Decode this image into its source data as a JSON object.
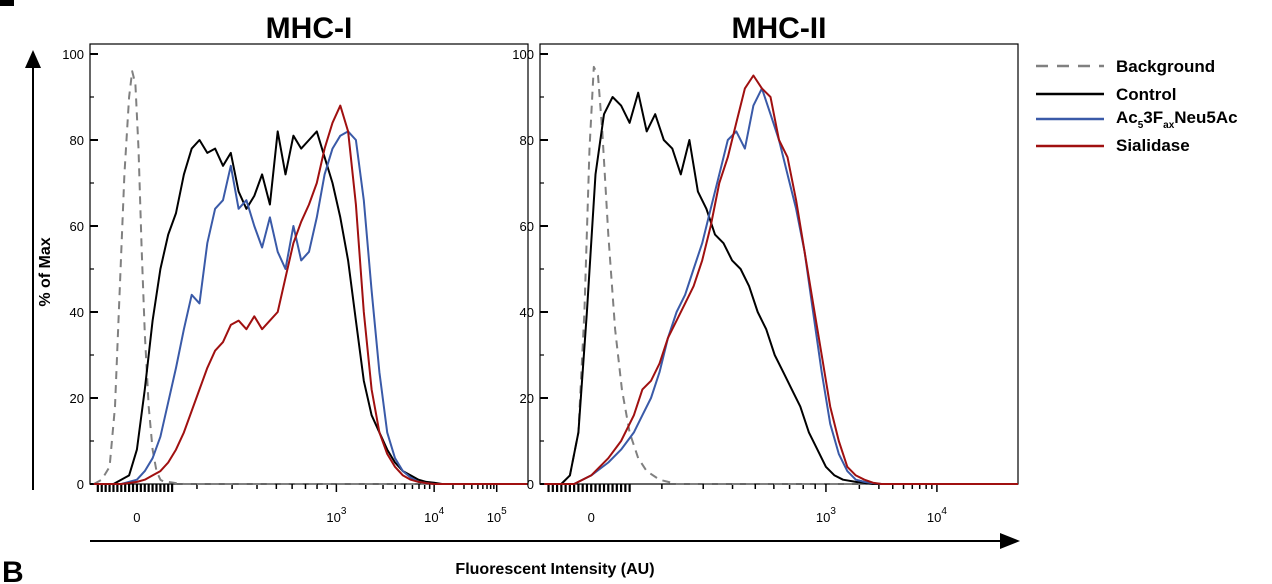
{
  "colors": {
    "background": "#808080",
    "control": "#000000",
    "ac5": "#3a5aa8",
    "sialidase": "#a01010"
  },
  "labels": {
    "y_axis": "% of Max",
    "x_axis": "Fluorescent Intensity (AU)",
    "panel_letter": "B"
  },
  "legend": {
    "background": "Background",
    "control": "Control",
    "ac5_part1": "Ac",
    "ac5_sub1": "5",
    "ac5_part2": "3F",
    "ac5_sub2": "ax",
    "ac5_part3": "Neu5Ac",
    "sialidase": "Sialidase"
  },
  "chart_data": [
    {
      "type": "line",
      "title": "MHC-I",
      "ylim": [
        0,
        100
      ],
      "yticks": [
        "0",
        "20",
        "40",
        "60",
        "80",
        "100"
      ],
      "xticks": [
        {
          "base": "0",
          "exp": ""
        },
        {
          "base": "10",
          "exp": "3"
        },
        {
          "base": "10",
          "exp": "4"
        },
        {
          "base": "10",
          "exp": "5"
        }
      ],
      "xlabel": "Fluorescent Intensity (AU)",
      "ylabel": "% of Max",
      "series": [
        {
          "name": "Background",
          "key": "background",
          "dashed": true,
          "x": [
            -0.55,
            -0.45,
            -0.35,
            -0.28,
            -0.22,
            -0.16,
            -0.1,
            -0.06,
            -0.02,
            0.02,
            0.06,
            0.1,
            0.15,
            0.2,
            0.25,
            0.3,
            0.35,
            0.4,
            0.5,
            0.6,
            0.8,
            1.0,
            1.4,
            2.0,
            2.6,
            3.0,
            3.4,
            3.8,
            4.2,
            4.6,
            5.0
          ],
          "y": [
            0,
            1,
            4,
            18,
            45,
            72,
            90,
            96,
            93,
            78,
            55,
            35,
            18,
            8,
            3,
            1,
            0.5,
            0.5,
            0.2,
            0,
            0,
            0,
            0,
            0,
            0,
            0,
            0,
            0,
            0,
            0,
            0
          ]
        },
        {
          "name": "Control",
          "key": "control",
          "x": [
            -0.55,
            -0.3,
            -0.1,
            0.0,
            0.1,
            0.2,
            0.3,
            0.4,
            0.5,
            0.6,
            0.7,
            0.8,
            0.9,
            1.0,
            1.1,
            1.2,
            1.3,
            1.4,
            1.5,
            1.6,
            1.7,
            1.8,
            1.9,
            2.0,
            2.1,
            2.2,
            2.3,
            2.4,
            2.5,
            2.6,
            2.7,
            2.8,
            2.9,
            3.0,
            3.1,
            3.2,
            3.3,
            3.4,
            3.5,
            3.6,
            3.7,
            3.8,
            3.9,
            4.0,
            4.2,
            4.6,
            5.0
          ],
          "y": [
            0,
            0,
            2,
            8,
            22,
            38,
            50,
            58,
            63,
            72,
            78,
            80,
            77,
            78,
            74,
            77,
            68,
            64,
            67,
            72,
            65,
            82,
            72,
            81,
            78,
            80,
            82,
            76,
            70,
            62,
            52,
            38,
            24,
            16,
            12,
            8,
            5,
            3,
            2,
            1,
            0.5,
            0.3,
            0,
            0,
            0,
            0,
            0
          ]
        },
        {
          "name": "Ac53FaxNeu5Ac",
          "key": "ac5",
          "x": [
            -0.55,
            -0.2,
            0.0,
            0.1,
            0.2,
            0.3,
            0.4,
            0.5,
            0.6,
            0.7,
            0.8,
            0.9,
            1.0,
            1.1,
            1.2,
            1.3,
            1.4,
            1.5,
            1.6,
            1.7,
            1.8,
            1.9,
            2.0,
            2.1,
            2.2,
            2.3,
            2.4,
            2.5,
            2.6,
            2.7,
            2.8,
            2.9,
            3.0,
            3.1,
            3.2,
            3.3,
            3.4,
            3.5,
            3.6,
            3.7,
            3.8,
            3.9,
            4.0,
            4.2,
            4.6,
            5.0
          ],
          "y": [
            0,
            0,
            1,
            3,
            6,
            11,
            19,
            27,
            36,
            44,
            42,
            56,
            64,
            66,
            74,
            64,
            66,
            60,
            55,
            62,
            54,
            50,
            60,
            52,
            54,
            62,
            72,
            78,
            81,
            82,
            80,
            66,
            45,
            26,
            12,
            6,
            3,
            1.5,
            0.5,
            0.2,
            0,
            0,
            0,
            0,
            0,
            0
          ]
        },
        {
          "name": "Sialidase",
          "key": "sialidase",
          "x": [
            -0.55,
            -0.2,
            0.0,
            0.1,
            0.2,
            0.3,
            0.4,
            0.5,
            0.6,
            0.7,
            0.8,
            0.9,
            1.0,
            1.1,
            1.2,
            1.3,
            1.4,
            1.5,
            1.6,
            1.7,
            1.8,
            1.9,
            2.0,
            2.1,
            2.2,
            2.3,
            2.4,
            2.5,
            2.6,
            2.7,
            2.8,
            2.9,
            3.0,
            3.1,
            3.2,
            3.3,
            3.4,
            3.5,
            3.6,
            3.7,
            3.8,
            3.9,
            4.0,
            4.2,
            4.6,
            5.0
          ],
          "y": [
            0,
            0,
            0.5,
            1,
            2,
            3,
            5,
            8,
            12,
            17,
            22,
            27,
            31,
            33,
            37,
            38,
            36,
            39,
            36,
            38,
            40,
            48,
            56,
            61,
            65,
            70,
            78,
            84,
            88,
            82,
            65,
            40,
            22,
            12,
            7,
            4,
            2,
            1,
            0.5,
            0.2,
            0,
            0,
            0,
            0,
            0,
            0
          ]
        }
      ]
    },
    {
      "type": "line",
      "title": "MHC-II",
      "ylim": [
        0,
        100
      ],
      "yticks": [
        "0",
        "20",
        "40",
        "60",
        "80",
        "100"
      ],
      "xticks": [
        {
          "base": "0",
          "exp": ""
        },
        {
          "base": "10",
          "exp": "3"
        },
        {
          "base": "10",
          "exp": "4"
        }
      ],
      "xlabel": "Fluorescent Intensity (AU)",
      "ylabel": "% of Max",
      "series": [
        {
          "name": "Background",
          "key": "background",
          "dashed": true,
          "x": [
            -0.55,
            -0.35,
            -0.25,
            -0.15,
            -0.08,
            -0.02,
            0.03,
            0.08,
            0.13,
            0.2,
            0.28,
            0.36,
            0.45,
            0.55,
            0.65,
            0.8,
            1.0,
            1.4,
            2.0,
            2.6,
            3.0,
            3.4,
            3.8,
            4.2,
            4.6,
            5.0
          ],
          "y": [
            0,
            0,
            2,
            12,
            40,
            78,
            97,
            95,
            82,
            58,
            36,
            22,
            12,
            6,
            3,
            1,
            0,
            0,
            0,
            0,
            0,
            0,
            0,
            0,
            0,
            0
          ]
        },
        {
          "name": "Control",
          "key": "control",
          "x": [
            -0.55,
            -0.35,
            -0.25,
            -0.15,
            -0.05,
            0.05,
            0.15,
            0.25,
            0.35,
            0.45,
            0.55,
            0.65,
            0.75,
            0.85,
            0.95,
            1.05,
            1.15,
            1.25,
            1.35,
            1.45,
            1.55,
            1.65,
            1.75,
            1.85,
            1.95,
            2.05,
            2.15,
            2.25,
            2.35,
            2.45,
            2.55,
            2.65,
            2.75,
            2.85,
            2.95,
            3.1,
            3.3,
            3.5,
            3.8,
            4.2,
            4.6,
            5.0
          ],
          "y": [
            0,
            0,
            2,
            12,
            40,
            72,
            86,
            90,
            88,
            84,
            91,
            82,
            86,
            80,
            78,
            72,
            80,
            68,
            64,
            58,
            56,
            52,
            50,
            46,
            40,
            36,
            30,
            26,
            22,
            18,
            12,
            8,
            4,
            2,
            1,
            0.5,
            0,
            0,
            0,
            0,
            0,
            0
          ]
        },
        {
          "name": "Ac53FaxNeu5Ac",
          "key": "ac5",
          "x": [
            -0.55,
            -0.2,
            0.0,
            0.2,
            0.35,
            0.5,
            0.6,
            0.7,
            0.8,
            0.9,
            1.0,
            1.1,
            1.2,
            1.3,
            1.4,
            1.5,
            1.6,
            1.7,
            1.8,
            1.9,
            2.0,
            2.1,
            2.2,
            2.3,
            2.4,
            2.5,
            2.6,
            2.7,
            2.8,
            2.9,
            3.0,
            3.1,
            3.2,
            3.3,
            3.4,
            3.6,
            3.8,
            4.2,
            4.6,
            5.0
          ],
          "y": [
            0,
            0,
            2,
            5,
            8,
            12,
            16,
            20,
            26,
            34,
            40,
            44,
            50,
            56,
            64,
            72,
            80,
            82,
            78,
            88,
            92,
            86,
            80,
            72,
            64,
            54,
            40,
            26,
            14,
            7,
            3,
            1,
            0.5,
            0.2,
            0,
            0,
            0,
            0,
            0,
            0
          ]
        },
        {
          "name": "Sialidase",
          "key": "sialidase",
          "x": [
            -0.55,
            -0.2,
            0.0,
            0.2,
            0.35,
            0.5,
            0.6,
            0.7,
            0.8,
            0.9,
            1.0,
            1.1,
            1.2,
            1.3,
            1.4,
            1.5,
            1.6,
            1.7,
            1.8,
            1.9,
            2.0,
            2.1,
            2.2,
            2.3,
            2.4,
            2.5,
            2.6,
            2.7,
            2.8,
            2.9,
            3.0,
            3.1,
            3.2,
            3.3,
            3.4,
            3.6,
            3.8,
            4.2,
            4.6,
            5.0
          ],
          "y": [
            0,
            0,
            2,
            6,
            10,
            16,
            22,
            24,
            28,
            34,
            38,
            42,
            46,
            52,
            60,
            70,
            76,
            84,
            92,
            95,
            92,
            90,
            80,
            76,
            66,
            54,
            42,
            30,
            18,
            10,
            4,
            2,
            1,
            0.3,
            0,
            0,
            0,
            0,
            0,
            0
          ]
        }
      ]
    }
  ]
}
